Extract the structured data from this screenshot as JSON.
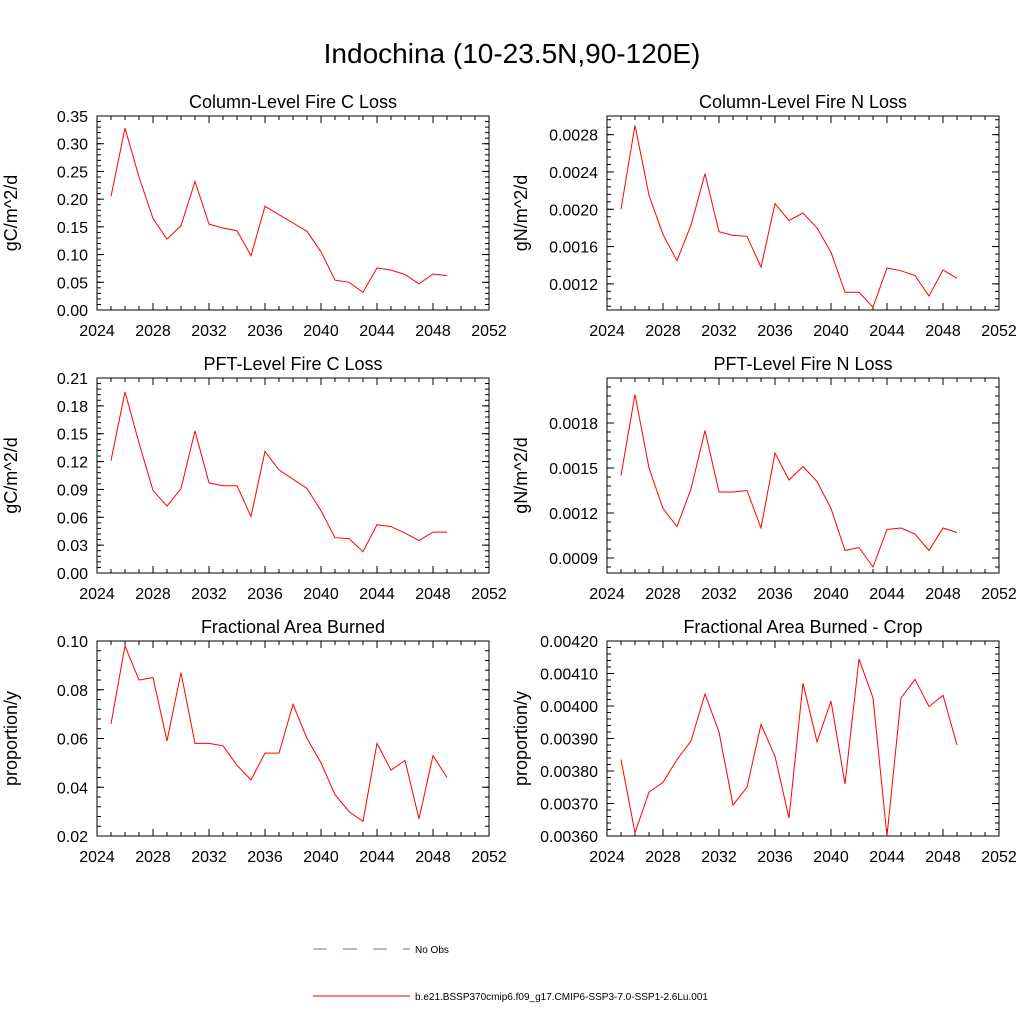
{
  "title": "Indochina (10-23.5N,90-120E)",
  "chart_data": [
    {
      "type": "line",
      "title": "Column-Level Fire C Loss",
      "ylabel": "gC/m^2/d",
      "xlim": [
        2024,
        2052
      ],
      "ylim": [
        0,
        0.35
      ],
      "xticks": [
        "2024",
        "2028",
        "2032",
        "2036",
        "2040",
        "2044",
        "2048",
        "2052"
      ],
      "yticks": [
        "0.00",
        "0.05",
        "0.10",
        "0.15",
        "0.20",
        "0.25",
        "0.30",
        "0.35"
      ],
      "x": [
        2025,
        2026,
        2027,
        2028,
        2029,
        2030,
        2031,
        2032,
        2033,
        2034,
        2035,
        2036,
        2037,
        2038,
        2039,
        2040,
        2041,
        2042,
        2043,
        2044,
        2045,
        2046,
        2047,
        2048,
        2049
      ],
      "series": [
        {
          "name": "b.e21.BSSP370cmip6.f09_g17.CMIP6-SSP3-7.0-SSP1-2.6Lu.001",
          "values": [
            0.205,
            0.328,
            0.24,
            0.165,
            0.128,
            0.152,
            0.232,
            0.155,
            0.148,
            0.143,
            0.098,
            0.187,
            0.172,
            0.157,
            0.142,
            0.105,
            0.054,
            0.05,
            0.032,
            0.076,
            0.072,
            0.064,
            0.047,
            0.065,
            0.062
          ]
        }
      ]
    },
    {
      "type": "line",
      "title": "Column-Level Fire N Loss",
      "ylabel": "gN/m^2/d",
      "xlim": [
        2024,
        2052
      ],
      "ylim": [
        0.00092,
        0.003
      ],
      "xticks": [
        "2024",
        "2028",
        "2032",
        "2036",
        "2040",
        "2044",
        "2048",
        "2052"
      ],
      "yticks": [
        "0.0012",
        "0.0016",
        "0.0020",
        "0.0024",
        "0.0028"
      ],
      "x": [
        2025,
        2026,
        2027,
        2028,
        2029,
        2030,
        2031,
        2032,
        2033,
        2034,
        2035,
        2036,
        2037,
        2038,
        2039,
        2040,
        2041,
        2042,
        2043,
        2044,
        2045,
        2046,
        2047,
        2048,
        2049
      ],
      "series": [
        {
          "name": "b.e21.BSSP370cmip6.f09_g17.CMIP6-SSP3-7.0-SSP1-2.6Lu.001",
          "values": [
            0.002,
            0.0029,
            0.00215,
            0.00173,
            0.00145,
            0.00183,
            0.00238,
            0.00176,
            0.00172,
            0.00171,
            0.00138,
            0.00206,
            0.00188,
            0.00196,
            0.0018,
            0.00154,
            0.00111,
            0.00111,
            0.00095,
            0.00137,
            0.00134,
            0.00129,
            0.00107,
            0.00135,
            0.00126
          ]
        }
      ]
    },
    {
      "type": "line",
      "title": "PFT-Level Fire C Loss",
      "ylabel": "gC/m^2/d",
      "xlim": [
        2024,
        2052
      ],
      "ylim": [
        0,
        0.21
      ],
      "xticks": [
        "2024",
        "2028",
        "2032",
        "2036",
        "2040",
        "2044",
        "2048",
        "2052"
      ],
      "yticks": [
        "0.00",
        "0.03",
        "0.06",
        "0.09",
        "0.12",
        "0.15",
        "0.18",
        "0.21"
      ],
      "x": [
        2025,
        2026,
        2027,
        2028,
        2029,
        2030,
        2031,
        2032,
        2033,
        2034,
        2035,
        2036,
        2037,
        2038,
        2039,
        2040,
        2041,
        2042,
        2043,
        2044,
        2045,
        2046,
        2047,
        2048,
        2049
      ],
      "series": [
        {
          "name": "b.e21.BSSP370cmip6.f09_g17.CMIP6-SSP3-7.0-SSP1-2.6Lu.001",
          "values": [
            0.121,
            0.195,
            0.14,
            0.089,
            0.072,
            0.091,
            0.153,
            0.097,
            0.094,
            0.094,
            0.061,
            0.131,
            0.111,
            0.101,
            0.091,
            0.067,
            0.038,
            0.037,
            0.023,
            0.052,
            0.05,
            0.043,
            0.035,
            0.044,
            0.044
          ]
        }
      ]
    },
    {
      "type": "line",
      "title": "PFT-Level Fire N Loss",
      "ylabel": "gN/m^2/d",
      "xlim": [
        2024,
        2052
      ],
      "ylim": [
        0.0008,
        0.0021
      ],
      "xticks": [
        "2024",
        "2028",
        "2032",
        "2036",
        "2040",
        "2044",
        "2048",
        "2052"
      ],
      "yticks": [
        "0.0009",
        "0.0012",
        "0.0015",
        "0.0018"
      ],
      "x": [
        2025,
        2026,
        2027,
        2028,
        2029,
        2030,
        2031,
        2032,
        2033,
        2034,
        2035,
        2036,
        2037,
        2038,
        2039,
        2040,
        2041,
        2042,
        2043,
        2044,
        2045,
        2046,
        2047,
        2048,
        2049
      ],
      "series": [
        {
          "name": "b.e21.BSSP370cmip6.f09_g17.CMIP6-SSP3-7.0-SSP1-2.6Lu.001",
          "values": [
            0.00145,
            0.00199,
            0.0015,
            0.00123,
            0.00111,
            0.00136,
            0.00175,
            0.00134,
            0.00134,
            0.00135,
            0.0011,
            0.0016,
            0.00142,
            0.00151,
            0.00141,
            0.00123,
            0.00095,
            0.00097,
            0.00084,
            0.00109,
            0.0011,
            0.00106,
            0.00095,
            0.0011,
            0.00107
          ]
        }
      ]
    },
    {
      "type": "line",
      "title": "Fractional Area Burned",
      "ylabel": "proportion/y",
      "xlim": [
        2024,
        2052
      ],
      "ylim": [
        0.02,
        0.1
      ],
      "xticks": [
        "2024",
        "2028",
        "2032",
        "2036",
        "2040",
        "2044",
        "2048",
        "2052"
      ],
      "yticks": [
        "0.02",
        "0.04",
        "0.06",
        "0.08",
        "0.10"
      ],
      "x": [
        2025,
        2026,
        2027,
        2028,
        2029,
        2030,
        2031,
        2032,
        2033,
        2034,
        2035,
        2036,
        2037,
        2038,
        2039,
        2040,
        2041,
        2042,
        2043,
        2044,
        2045,
        2046,
        2047,
        2048,
        2049
      ],
      "series": [
        {
          "name": "b.e21.BSSP370cmip6.f09_g17.CMIP6-SSP3-7.0-SSP1-2.6Lu.001",
          "values": [
            0.066,
            0.098,
            0.084,
            0.085,
            0.059,
            0.087,
            0.058,
            0.058,
            0.057,
            0.049,
            0.043,
            0.054,
            0.054,
            0.074,
            0.06,
            0.05,
            0.037,
            0.03,
            0.026,
            0.058,
            0.047,
            0.051,
            0.027,
            0.053,
            0.044
          ]
        }
      ]
    },
    {
      "type": "line",
      "title": "Fractional Area Burned - Crop",
      "ylabel": "proportion/y",
      "xlim": [
        2024,
        2052
      ],
      "ylim": [
        0.0036,
        0.0042
      ],
      "xticks": [
        "2024",
        "2028",
        "2032",
        "2036",
        "2040",
        "2044",
        "2048",
        "2052"
      ],
      "yticks": [
        "0.00360",
        "0.00370",
        "0.00380",
        "0.00390",
        "0.00400",
        "0.00410",
        "0.00420"
      ],
      "x": [
        2025,
        2026,
        2027,
        2028,
        2029,
        2030,
        2031,
        2032,
        2033,
        2034,
        2035,
        2036,
        2037,
        2038,
        2039,
        2040,
        2041,
        2042,
        2043,
        2044,
        2045,
        2046,
        2047,
        2048,
        2049
      ],
      "series": [
        {
          "name": "b.e21.BSSP370cmip6.f09_g17.CMIP6-SSP3-7.0-SSP1-2.6Lu.001",
          "values": [
            0.003835,
            0.00361,
            0.003735,
            0.003765,
            0.003835,
            0.003892,
            0.004037,
            0.00392,
            0.003695,
            0.00375,
            0.003943,
            0.003845,
            0.003655,
            0.00407,
            0.00389,
            0.004015,
            0.00376,
            0.004145,
            0.004025,
            0.0036,
            0.004025,
            0.004082,
            0.003998,
            0.004033,
            0.00388
          ]
        }
      ]
    }
  ],
  "legend": {
    "items": [
      {
        "label": "No Obs",
        "color": "#6f6fb0",
        "style": "dashed"
      },
      {
        "label": "b.e21.BSSP370cmip6.f09_g17.CMIP6-SSP3-7.0-SSP1-2.6Lu.001",
        "color": "#ff0000",
        "style": "solid"
      }
    ]
  }
}
